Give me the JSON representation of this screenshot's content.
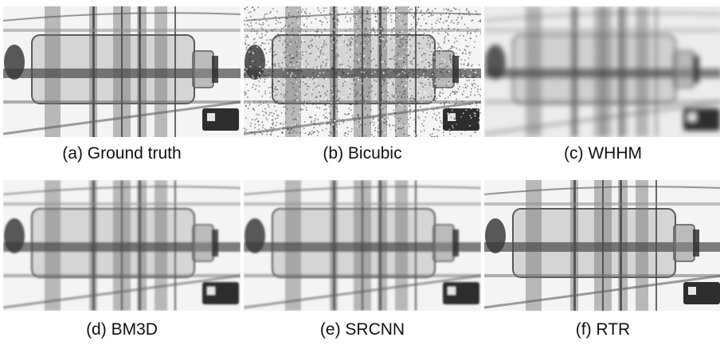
{
  "figure": {
    "panels": [
      {
        "caption": "(a) Ground truth",
        "style": "sharp"
      },
      {
        "caption": "(b) Bicubic",
        "style": "noisy"
      },
      {
        "caption": "(c) WHHM",
        "style": "blurry"
      },
      {
        "caption": "(d) BM3D",
        "style": "smooth"
      },
      {
        "caption": "(e) SRCNN",
        "style": "smooth"
      },
      {
        "caption": "(f) RTR",
        "style": "sharp"
      }
    ]
  }
}
